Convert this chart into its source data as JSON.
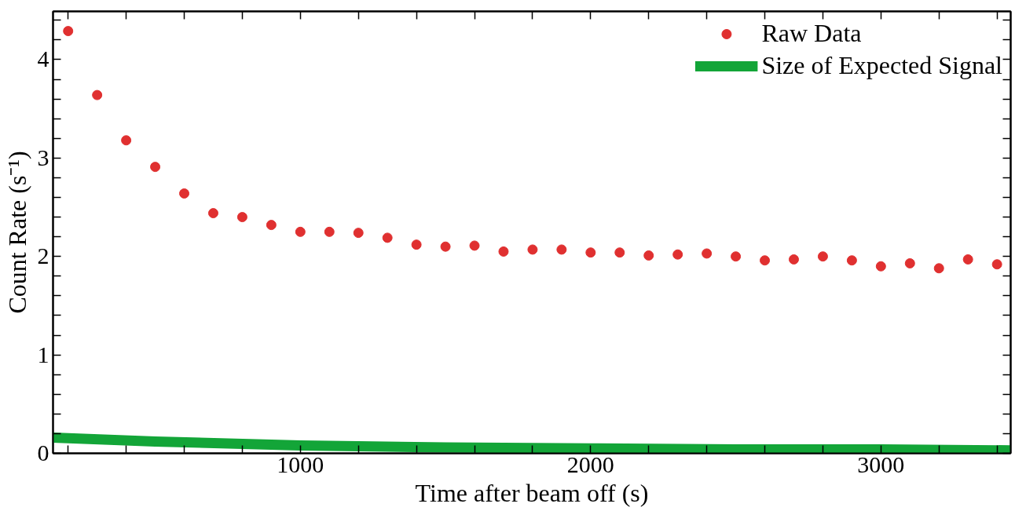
{
  "chart_data": {
    "type": "scatter",
    "xlabel": "Time after beam off (s)",
    "ylabel": "Count Rate (s⁻¹)",
    "xlim": [
      148,
      3447
    ],
    "ylim": [
      0,
      4.49
    ],
    "xticks": [
      {
        "value": 200,
        "label": null
      },
      {
        "value": 400,
        "label": null
      },
      {
        "value": 600,
        "label": null
      },
      {
        "value": 800,
        "label": null
      },
      1000,
      {
        "value": 1200,
        "label": null
      },
      {
        "value": 1400,
        "label": null
      },
      {
        "value": 1600,
        "label": null
      },
      {
        "value": 1800,
        "label": null
      },
      2000,
      {
        "value": 2200,
        "label": null
      },
      {
        "value": 2400,
        "label": null
      },
      {
        "value": 2600,
        "label": null
      },
      {
        "value": 2800,
        "label": null
      },
      3000,
      {
        "value": 3200,
        "label": null
      },
      {
        "value": 3400,
        "label": null
      }
    ],
    "yticks": [
      0,
      {
        "value": 0.2,
        "label": null
      },
      {
        "value": 0.4,
        "label": null
      },
      {
        "value": 0.6,
        "label": null
      },
      {
        "value": 0.8,
        "label": null
      },
      1,
      {
        "value": 1.2,
        "label": null
      },
      {
        "value": 1.4,
        "label": null
      },
      {
        "value": 1.6,
        "label": null
      },
      {
        "value": 1.8,
        "label": null
      },
      2,
      {
        "value": 2.2,
        "label": null
      },
      {
        "value": 2.4,
        "label": null
      },
      {
        "value": 2.6,
        "label": null
      },
      {
        "value": 2.8,
        "label": null
      },
      3,
      {
        "value": 3.2,
        "label": null
      },
      {
        "value": 3.4,
        "label": null
      },
      {
        "value": 3.6,
        "label": null
      },
      {
        "value": 3.8,
        "label": null
      },
      4,
      {
        "value": 4.2,
        "label": null
      },
      {
        "value": 4.4,
        "label": null
      }
    ],
    "grid": false,
    "legend": "top right",
    "series": [
      {
        "name": "Raw Data",
        "marker": "circle",
        "color": "#e03030",
        "x": [
          200,
          300,
          400,
          500,
          600,
          700,
          800,
          900,
          1000,
          1100,
          1200,
          1300,
          1400,
          1500,
          1600,
          1700,
          1800,
          1900,
          2000,
          2100,
          2200,
          2300,
          2400,
          2500,
          2600,
          2700,
          2800,
          2900,
          3000,
          3100,
          3200,
          3300,
          3400
        ],
        "values": [
          4.29,
          3.64,
          3.18,
          2.91,
          2.64,
          2.44,
          2.4,
          2.32,
          2.25,
          2.25,
          2.24,
          2.19,
          2.12,
          2.1,
          2.11,
          2.05,
          2.07,
          2.07,
          2.04,
          2.04,
          2.01,
          2.02,
          2.03,
          2.0,
          1.96,
          1.97,
          2.0,
          1.96,
          1.9,
          1.93,
          1.88,
          1.97,
          1.92
        ]
      },
      {
        "name": "Size of Expected Signal",
        "type": "line",
        "line_style": "solid",
        "color": "#13a538",
        "x": [
          148,
          500,
          1000,
          1500,
          2000,
          2500,
          3000,
          3447
        ],
        "values": [
          0.16,
          0.12,
          0.08,
          0.06,
          0.05,
          0.04,
          0.04,
          0.03
        ]
      }
    ]
  }
}
